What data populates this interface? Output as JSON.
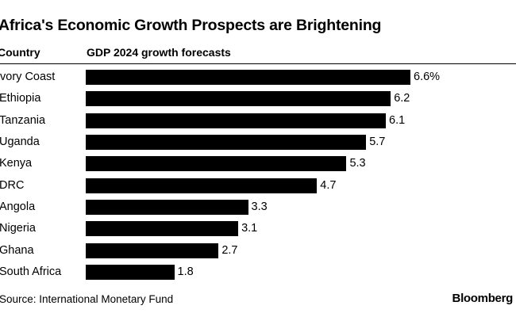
{
  "chart_data": {
    "type": "bar",
    "orientation": "horizontal",
    "title": "Africa's Economic Growth Prospects are Brightening",
    "category_header": "Country",
    "value_header": "GDP 2024 growth forecasts",
    "categories": [
      "Ivory Coast",
      "Ethiopia",
      "Tanzania",
      "Uganda",
      "Kenya",
      "DRC",
      "Angola",
      "Nigeria",
      "Ghana",
      "South Africa"
    ],
    "values": [
      6.6,
      6.2,
      6.1,
      5.7,
      5.3,
      4.7,
      3.3,
      3.1,
      2.7,
      1.8
    ],
    "value_labels": [
      "6.6%",
      "6.2",
      "6.1",
      "5.7",
      "5.3",
      "4.7",
      "3.3",
      "3.1",
      "2.7",
      "1.8"
    ],
    "xlim": [
      0,
      6.6
    ],
    "grid": false,
    "bar_color": "#000000",
    "source": "Source: International Monetary Fund",
    "brand": "Bloomberg"
  }
}
